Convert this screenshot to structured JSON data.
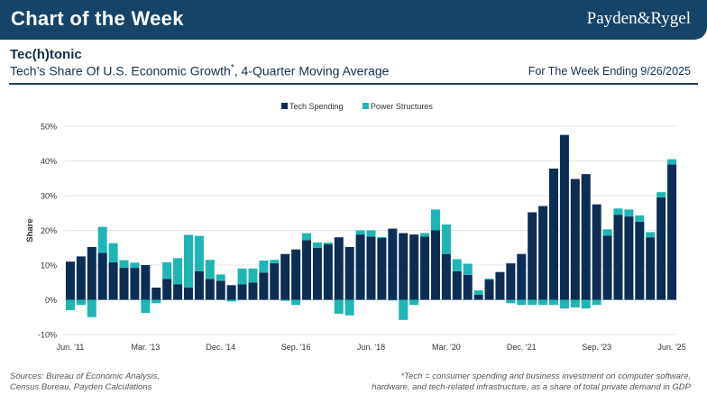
{
  "header": {
    "title": "Chart of the Week",
    "brand": "Payden&Rygel"
  },
  "subheader": {
    "title": "Tec(h)tonic",
    "description_pre": "Tech’s Share Of U.S. Economic Growth",
    "description_mark": "*",
    "description_post": ", 4-Quarter Moving Average",
    "week": "For The Week Ending 9/26/2025"
  },
  "footer": {
    "sources_line1": "Sources: Bureau of Economic Analysis,",
    "sources_line2": "Census Bureau, Payden Calculations",
    "note_line1": "*Tech = consumer spending and business investment on computer software,",
    "note_line2": "hardware, and tech-related infrastructure, as a share of total private demand in GDP"
  },
  "colors": {
    "banner": "#14446a",
    "tech": "#0c2e55",
    "power": "#1fb5b5"
  },
  "chart_data": {
    "type": "bar",
    "stacked": true,
    "ylabel": "Share",
    "ylim": [
      -10,
      50
    ],
    "yticks": [
      -10,
      0,
      10,
      20,
      30,
      40,
      50
    ],
    "ytick_labels": [
      "-10%",
      "0%",
      "10%",
      "20%",
      "30%",
      "40%",
      "50%"
    ],
    "legend_position": "top-center",
    "xtick_labels": [
      {
        "index": 0,
        "label": "Jun. '11"
      },
      {
        "index": 7,
        "label": "Mar. '13"
      },
      {
        "index": 14,
        "label": "Dec. '14"
      },
      {
        "index": 21,
        "label": "Sep. '16"
      },
      {
        "index": 28,
        "label": "Jun. '18"
      },
      {
        "index": 35,
        "label": "Mar. '20"
      },
      {
        "index": 42,
        "label": "Dec. '21"
      },
      {
        "index": 49,
        "label": "Sep. '23"
      },
      {
        "index": 56,
        "label": "Jun. '25"
      }
    ],
    "series": [
      {
        "name": "Tech Spending",
        "color": "#0c2e55",
        "values": [
          11,
          12.5,
          15.2,
          13.5,
          10.8,
          9.2,
          9.2,
          10,
          3.5,
          6,
          4.5,
          3.5,
          8.2,
          6,
          5.5,
          4.2,
          4.5,
          5,
          7.8,
          10.5,
          13.2,
          14.5,
          17.2,
          15,
          16,
          18,
          15.2,
          18.8,
          18.2,
          17.8,
          20.5,
          19.2,
          18.8,
          18.2,
          20,
          13.2,
          8.2,
          7.2,
          1.5,
          5.8,
          8,
          10.5,
          13.2,
          25.2,
          27,
          37.8,
          47.5,
          34.8,
          36.2,
          27.5,
          18.5,
          24.5,
          24,
          22.5,
          18,
          29.5,
          39
        ],
        "power": [
          -3,
          -1.5,
          -5,
          7.5,
          5.5,
          2.2,
          1.5,
          -3.8,
          -1,
          4.8,
          7.5,
          15.2,
          10.2,
          5.5,
          1.8,
          -0.5,
          4.5,
          4,
          3.5,
          1,
          -0.3,
          -1.5,
          2,
          1.5,
          0.5,
          -4,
          -4.5,
          1.2,
          1.8,
          0.3,
          -0.2,
          -5.8,
          -1.5,
          1,
          6,
          8.5,
          3.5,
          3.2,
          1.2,
          0.3,
          0,
          -1,
          -1.5,
          -1.5,
          -1.5,
          -1.5,
          -2.5,
          -2.2,
          -2.5,
          -1.5,
          1.8,
          1.8,
          2,
          1.8,
          1.5,
          1.5,
          1.5
        ]
      },
      {
        "name": "Power Structures",
        "color": "#1fb5b5"
      }
    ]
  }
}
